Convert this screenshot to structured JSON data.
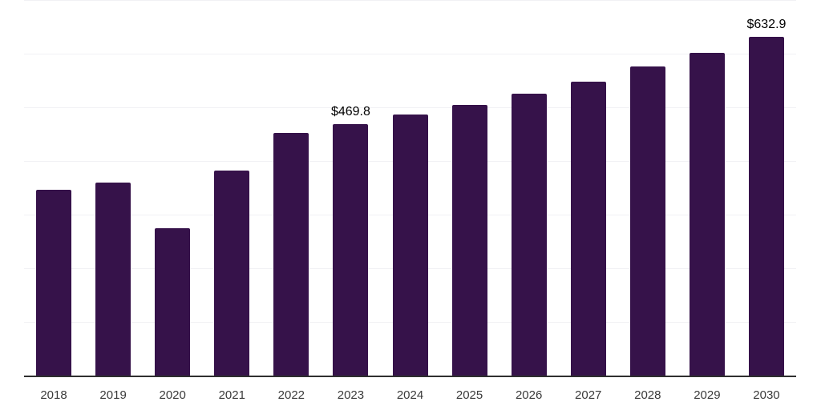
{
  "chart_data": {
    "type": "bar",
    "title": "",
    "xlabel": "",
    "ylabel": "",
    "categories": [
      "2018",
      "2019",
      "2020",
      "2021",
      "2022",
      "2023",
      "2024",
      "2025",
      "2026",
      "2027",
      "2028",
      "2029",
      "2030"
    ],
    "values": [
      348.0,
      361.2,
      276.1,
      384.0,
      454.2,
      469.8,
      487.6,
      506.0,
      527.0,
      549.7,
      577.2,
      603.0,
      632.9
    ],
    "visible_bar_labels": [
      "",
      "",
      "",
      "",
      "",
      "$469.8",
      "",
      "",
      "",
      "",
      "",
      "",
      "$632.9"
    ],
    "ylim": [
      0,
      700
    ],
    "gridline_values": [
      100,
      200,
      300,
      400,
      500,
      600,
      700
    ],
    "grid": "horizontal",
    "legend_position": "none",
    "colors": {
      "bar_fill": "#36124a",
      "axis_line": "#2f2f2f",
      "gridline": "#f1f1f4",
      "tick_label": "#3a3a3a",
      "value_label": "#000000",
      "background": "#ffffff"
    }
  }
}
